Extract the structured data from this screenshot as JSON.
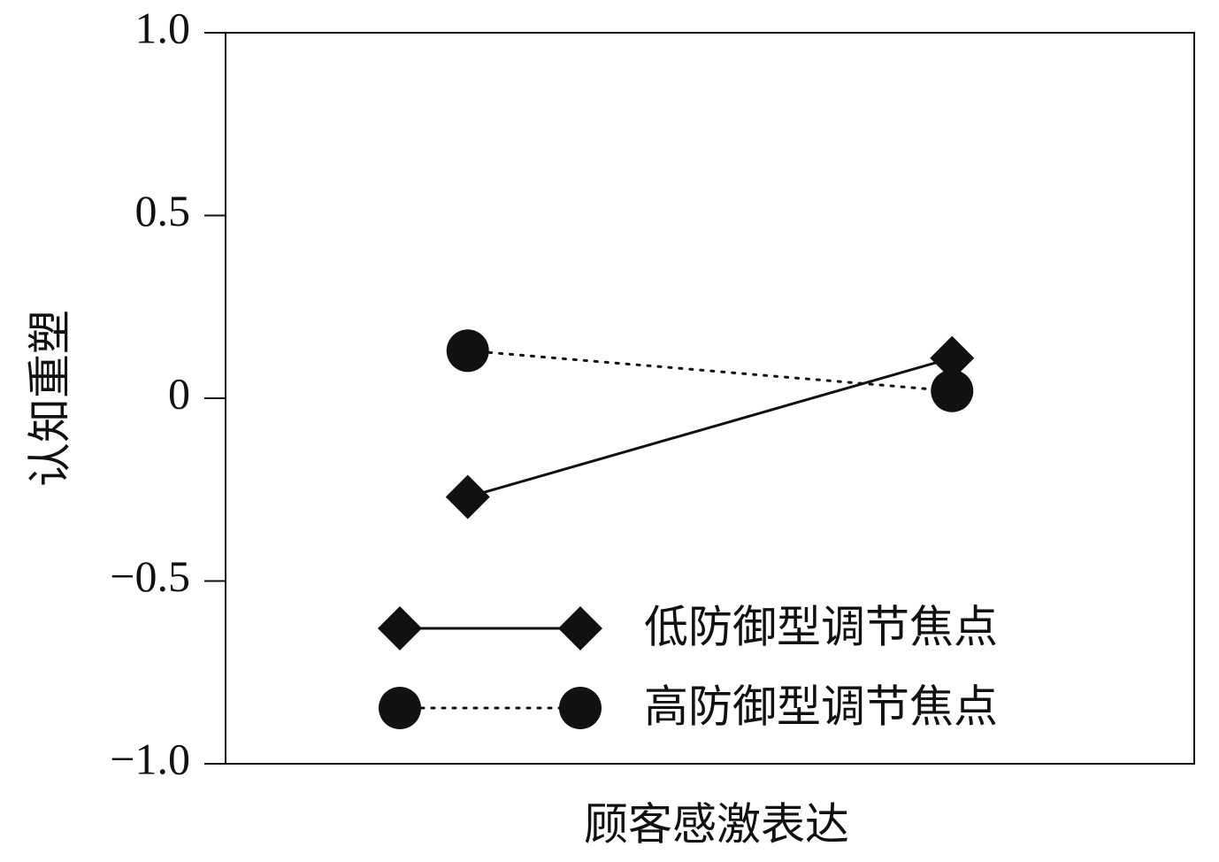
{
  "chart_data": {
    "type": "line",
    "xlabel": "顾客感激表达",
    "ylabel": "认知重塑",
    "categories": [
      null,
      null
    ],
    "series": [
      {
        "name": "低防御型调节焦点",
        "color": "#111111",
        "marker": "diamond",
        "line_style": "solid",
        "values": [
          -0.27,
          0.11
        ]
      },
      {
        "name": "高防御型调节焦点",
        "color": "#111111",
        "marker": "circle",
        "line_style": "dotted",
        "values": [
          0.13,
          0.02
        ]
      }
    ],
    "ylim": [
      -1,
      1
    ],
    "yticks": [
      {
        "value": -1,
        "label": "−1.0"
      },
      {
        "value": -0.5,
        "label": "−0.5"
      },
      0,
      0.5,
      {
        "value": 1,
        "label": "1.0"
      }
    ],
    "grid": false,
    "legend": "lower center"
  }
}
